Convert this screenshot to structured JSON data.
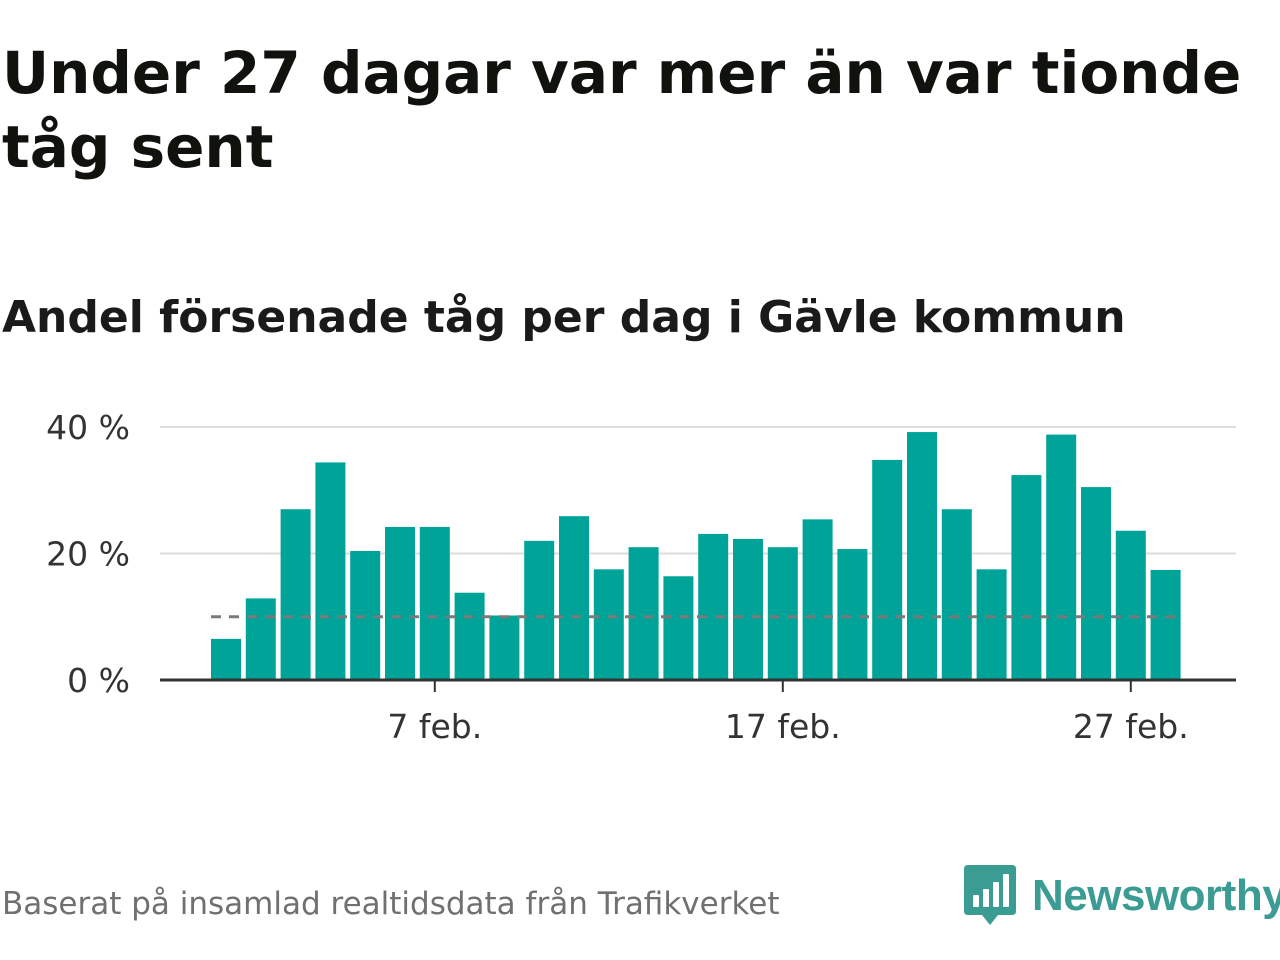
{
  "title": "Under 27 dagar var mer än var tionde tåg sent",
  "subtitle": "Andel försenade tåg per dag i Gävle kommun",
  "source": "Baserat på insamlad realtidsdata från Trafikverket",
  "brand": {
    "name": "Newsworthy",
    "logo_icon": "bar-chart-speech-bubble-icon"
  },
  "colors": {
    "bar": "#00a398",
    "reference_line": "#7a7a7a",
    "grid": "#dddddd",
    "axis": "#333333",
    "brand": "#3a9c93"
  },
  "chart_data": {
    "type": "bar",
    "categories": [
      "1 feb.",
      "2 feb.",
      "3 feb.",
      "4 feb.",
      "5 feb.",
      "6 feb.",
      "7 feb.",
      "8 feb.",
      "9 feb.",
      "10 feb.",
      "11 feb.",
      "12 feb.",
      "13 feb.",
      "14 feb.",
      "15 feb.",
      "16 feb.",
      "17 feb.",
      "18 feb.",
      "19 feb.",
      "20 feb.",
      "21 feb.",
      "22 feb.",
      "23 feb.",
      "24 feb.",
      "25 feb.",
      "26 feb.",
      "27 feb.",
      "28 feb."
    ],
    "values": [
      6.5,
      12.9,
      27.0,
      34.4,
      20.4,
      24.2,
      24.2,
      13.8,
      10.2,
      22.0,
      25.9,
      17.5,
      21.0,
      16.4,
      23.1,
      22.3,
      21.0,
      25.4,
      20.7,
      34.8,
      39.2,
      27.0,
      17.5,
      32.4,
      38.8,
      30.5,
      23.6,
      17.4
    ],
    "reference_line": 10,
    "ylim": [
      0,
      40
    ],
    "y_ticks": [
      0,
      20,
      40
    ],
    "y_tick_labels": [
      "0 %",
      "20 %",
      "40 %"
    ],
    "x_tick_labels": [
      {
        "category": "7 feb.",
        "label": "7 feb."
      },
      {
        "category": "17 feb.",
        "label": "17 feb."
      },
      {
        "category": "27 feb.",
        "label": "27 feb."
      }
    ],
    "xlabel": "",
    "ylabel": "",
    "grid": true,
    "legend": "none"
  }
}
